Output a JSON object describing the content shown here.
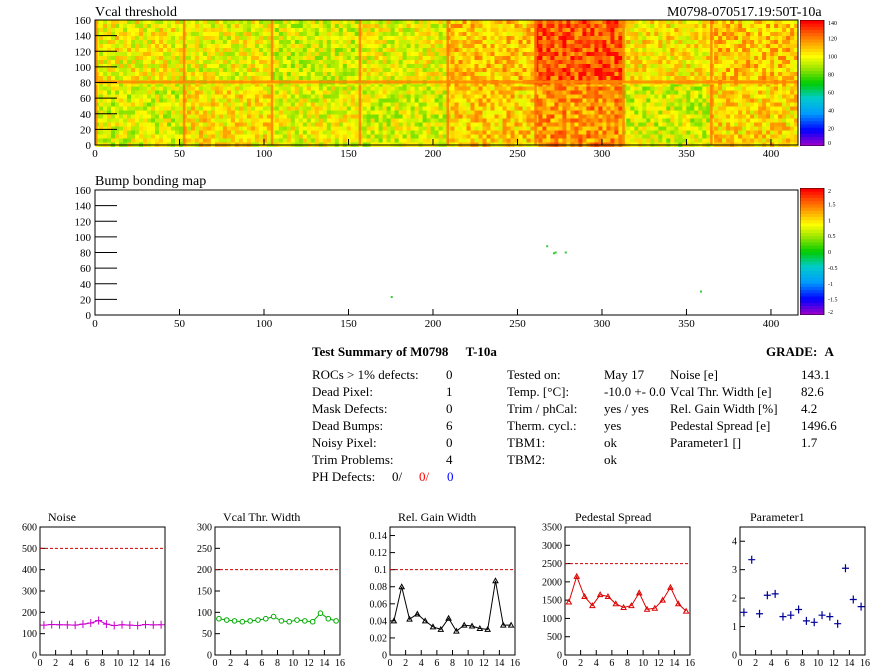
{
  "header": {
    "title": "Vcal threshold",
    "module_id": "M0798-070517.19:50T-10a"
  },
  "chart_data": [
    {
      "type": "heatmap",
      "title": "Vcal threshold",
      "x_ticks": [
        0,
        50,
        100,
        150,
        200,
        250,
        300,
        350,
        400
      ],
      "y_ticks": [
        0,
        20,
        40,
        60,
        80,
        100,
        120,
        140,
        160
      ],
      "xlim": [
        0,
        416
      ],
      "ylim": [
        0,
        160
      ],
      "palette_scale": [
        0,
        20,
        40,
        60,
        80,
        100,
        120,
        140
      ],
      "roc_block_values": [
        [
          96,
          104,
          99,
          96,
          108,
          118,
          95,
          106
        ],
        [
          101,
          99,
          95,
          99,
          110,
          128,
          104,
          110
        ]
      ],
      "description_note": ""
    },
    {
      "type": "heatmap",
      "title": "Bump bonding map",
      "x_ticks": [
        0,
        50,
        100,
        150,
        200,
        250,
        300,
        350,
        400
      ],
      "y_ticks": [
        0,
        20,
        40,
        60,
        80,
        100,
        120,
        140,
        160
      ],
      "xlim": [
        0,
        416
      ],
      "ylim": [
        0,
        160
      ],
      "palette_scale": [
        -2,
        -1.5,
        -1,
        -0.5,
        0,
        0.5,
        1,
        1.5,
        2
      ],
      "defect_points": [
        [
          267,
          88
        ],
        [
          272,
          80
        ],
        [
          278,
          80
        ],
        [
          175,
          23
        ],
        [
          358,
          30
        ],
        [
          271,
          79
        ]
      ]
    },
    {
      "type": "line",
      "title": "Noise",
      "x_ticks": [
        0,
        2,
        4,
        6,
        8,
        10,
        12,
        14,
        16
      ],
      "y_ticks": [
        0,
        100,
        200,
        300,
        400,
        500,
        600
      ],
      "xlim": [
        0,
        16
      ],
      "ylim": [
        0,
        600
      ],
      "threshold": 500,
      "color": "#cc00cc",
      "style": "cross",
      "x": [
        0.5,
        1.5,
        2.5,
        3.5,
        4.5,
        5.5,
        6.5,
        7.5,
        8.5,
        9.5,
        10.5,
        11.5,
        12.5,
        13.5,
        14.5,
        15.5
      ],
      "values": [
        140,
        143,
        142,
        141,
        140,
        145,
        150,
        162,
        145,
        138,
        142,
        140,
        138,
        143,
        141,
        142
      ]
    },
    {
      "type": "line",
      "title": "Vcal Thr. Width",
      "x_ticks": [
        0,
        2,
        4,
        6,
        8,
        10,
        12,
        14,
        16
      ],
      "y_ticks": [
        0,
        50,
        100,
        150,
        200,
        250,
        300
      ],
      "xlim": [
        0,
        16
      ],
      "ylim": [
        0,
        300
      ],
      "threshold": 200,
      "color": "#00aa00",
      "style": "circle",
      "x": [
        0.5,
        1.5,
        2.5,
        3.5,
        4.5,
        5.5,
        6.5,
        7.5,
        8.5,
        9.5,
        10.5,
        11.5,
        12.5,
        13.5,
        14.5,
        15.5
      ],
      "values": [
        85,
        82,
        80,
        78,
        80,
        82,
        85,
        90,
        80,
        78,
        82,
        80,
        78,
        98,
        85,
        80
      ]
    },
    {
      "type": "line",
      "title": "Rel. Gain Width",
      "x_ticks": [
        0,
        2,
        4,
        6,
        8,
        10,
        12,
        14,
        16
      ],
      "y_ticks": [
        0,
        0.02,
        0.04,
        0.06,
        0.08,
        0.1,
        0.12,
        0.14
      ],
      "y_tick_labels": [
        "0",
        "0.02",
        "0.04",
        "0.06",
        "0.08",
        "0.1",
        "0.12",
        "0.14"
      ],
      "xlim": [
        0,
        16
      ],
      "ylim": [
        0,
        0.15
      ],
      "threshold": 0.1,
      "color": "#000000",
      "style": "triangle",
      "x": [
        0.5,
        1.5,
        2.5,
        3.5,
        4.5,
        5.5,
        6.5,
        7.5,
        8.5,
        9.5,
        10.5,
        11.5,
        12.5,
        13.5,
        14.5,
        15.5
      ],
      "values": [
        0.04,
        0.08,
        0.042,
        0.048,
        0.04,
        0.033,
        0.03,
        0.043,
        0.028,
        0.035,
        0.034,
        0.031,
        0.03,
        0.087,
        0.035,
        0.035
      ]
    },
    {
      "type": "line",
      "title": "Pedestal Spread",
      "x_ticks": [
        0,
        2,
        4,
        6,
        8,
        10,
        12,
        14,
        16
      ],
      "y_ticks": [
        0,
        500,
        1000,
        1500,
        2000,
        2500,
        3000,
        3500
      ],
      "xlim": [
        0,
        16
      ],
      "ylim": [
        0,
        3500
      ],
      "threshold": 2500,
      "color": "#dd0000",
      "style": "triangle",
      "x": [
        0.5,
        1.5,
        2.5,
        3.5,
        4.5,
        5.5,
        6.5,
        7.5,
        8.5,
        9.5,
        10.5,
        11.5,
        12.5,
        13.5,
        14.5,
        15.5
      ],
      "values": [
        1450,
        2150,
        1600,
        1350,
        1650,
        1600,
        1400,
        1300,
        1350,
        1700,
        1250,
        1280,
        1500,
        1850,
        1400,
        1200
      ]
    },
    {
      "type": "scatter",
      "title": "Parameter1",
      "x_ticks": [
        0,
        2,
        4,
        6,
        8,
        10,
        12,
        14,
        16
      ],
      "y_ticks": [
        0,
        1,
        2,
        3,
        4
      ],
      "xlim": [
        0,
        16
      ],
      "ylim": [
        0,
        4.5
      ],
      "color": "#000099",
      "style": "plus",
      "x": [
        0.5,
        1.5,
        2.5,
        3.5,
        4.5,
        5.5,
        6.5,
        7.5,
        8.5,
        9.5,
        10.5,
        11.5,
        12.5,
        13.5,
        14.5,
        15.5
      ],
      "values": [
        1.5,
        3.35,
        1.45,
        2.1,
        2.15,
        1.35,
        1.4,
        1.6,
        1.2,
        1.15,
        1.4,
        1.35,
        1.1,
        3.05,
        1.95,
        1.7
      ]
    }
  ],
  "summary": {
    "title": "Test Summary of M0798",
    "temp_tag": "T-10a",
    "grade_label": "GRADE:",
    "grade": "A",
    "left": [
      {
        "label": "ROCs > 1% defects:",
        "value": "0"
      },
      {
        "label": "Dead Pixel:",
        "value": "1"
      },
      {
        "label": "Mask Defects:",
        "value": "0"
      },
      {
        "label": "Dead Bumps:",
        "value": "6"
      },
      {
        "label": "Noisy Pixel:",
        "value": "0"
      },
      {
        "label": "Trim Problems:",
        "value": "4"
      }
    ],
    "ph_label": "PH Defects:",
    "ph_values": [
      "0/",
      "0/",
      "0"
    ],
    "ph_colors": [
      "#000000",
      "#ff0000",
      "#0000ff"
    ],
    "middle": [
      {
        "label": "Tested on:",
        "value": "May 17"
      },
      {
        "label": "Temp. [°C]:",
        "value": "-10.0 +- 0.0"
      },
      {
        "label": "Trim / phCal:",
        "value": "yes / yes"
      },
      {
        "label": "Therm. cycl.:",
        "value": "yes"
      },
      {
        "label": "TBM1:",
        "value": "ok"
      },
      {
        "label": "TBM2:",
        "value": "ok"
      }
    ],
    "right": [
      {
        "label": "Noise [e]",
        "value": "143.1"
      },
      {
        "label": "Vcal Thr. Width [e]",
        "value": "82.6"
      },
      {
        "label": "Rel. Gain Width [%]",
        "value": "4.2"
      },
      {
        "label": "Pedestal Spread [e]",
        "value": "1496.6"
      },
      {
        "label": "Parameter1 []",
        "value": "1.7"
      }
    ]
  }
}
